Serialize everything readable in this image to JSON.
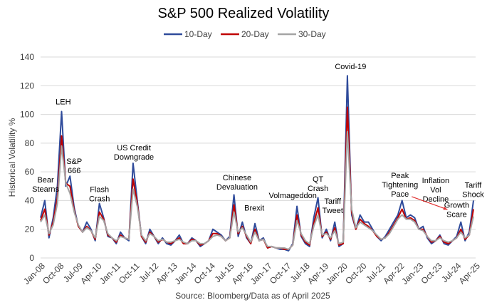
{
  "chart_data": {
    "type": "line",
    "title": "S&P 500 Realized Volatility",
    "xlabel": "",
    "ylabel": "Historical Volatility %",
    "source": "Source: Bloomberg/Data as of April 2025",
    "ylim": [
      0,
      140
    ],
    "yticks": [
      0,
      20,
      40,
      60,
      80,
      100,
      120,
      140
    ],
    "grid": true,
    "legend_position": "top-center",
    "x_start": "2008-01",
    "x_step_months": 2,
    "x_range_months": [
      0,
      207
    ],
    "xtick_labels": [
      "Jan-08",
      "Oct-08",
      "Jul-09",
      "Apr-10",
      "Jan-11",
      "Oct-11",
      "Jul-12",
      "Apr-13",
      "Jan-14",
      "Oct-14",
      "Jul-15",
      "Apr-16",
      "Jan-17",
      "Oct-17",
      "Jul-18",
      "Apr-19",
      "Jan-20",
      "Oct-20",
      "Jul-21",
      "Apr-22",
      "Jan-23",
      "Oct-23",
      "Jul-24",
      "Apr-25"
    ],
    "xtick_step_months": 9,
    "series": [
      {
        "name": "10-Day",
        "color": "#2F4B9B",
        "values": [
          28,
          40,
          14,
          28,
          50,
          102,
          50,
          57,
          35,
          22,
          18,
          25,
          20,
          12,
          38,
          28,
          15,
          14,
          10,
          18,
          14,
          12,
          66,
          40,
          15,
          10,
          20,
          15,
          10,
          14,
          10,
          9,
          12,
          16,
          10,
          10,
          14,
          12,
          8,
          10,
          12,
          20,
          18,
          16,
          12,
          15,
          44,
          15,
          25,
          14,
          10,
          24,
          12,
          14,
          7,
          8,
          7,
          6,
          6,
          5,
          10,
          36,
          15,
          10,
          8,
          28,
          42,
          14,
          20,
          12,
          25,
          8,
          10,
          127,
          30,
          20,
          30,
          25,
          25,
          20,
          15,
          12,
          15,
          20,
          25,
          30,
          40,
          28,
          30,
          28,
          20,
          22,
          14,
          10,
          12,
          16,
          10,
          9,
          12,
          15,
          25,
          12,
          18,
          40
        ]
      },
      {
        "name": "20-Day",
        "color": "#C00000",
        "values": [
          26,
          34,
          16,
          25,
          42,
          85,
          52,
          50,
          33,
          22,
          18,
          22,
          19,
          13,
          32,
          27,
          16,
          14,
          11,
          16,
          14,
          13,
          55,
          38,
          15,
          11,
          18,
          15,
          11,
          13,
          11,
          10,
          12,
          14,
          10,
          10,
          13,
          12,
          9,
          10,
          12,
          17,
          17,
          15,
          12,
          14,
          37,
          17,
          22,
          15,
          10,
          20,
          12,
          13,
          7,
          8,
          7,
          7,
          6,
          6,
          9,
          30,
          16,
          11,
          9,
          24,
          35,
          15,
          18,
          13,
          21,
          9,
          10,
          105,
          32,
          20,
          27,
          24,
          22,
          19,
          15,
          13,
          14,
          18,
          23,
          28,
          34,
          27,
          28,
          26,
          20,
          20,
          15,
          11,
          12,
          15,
          11,
          10,
          12,
          14,
          20,
          13,
          16,
          34
        ]
      },
      {
        "name": "30-Day",
        "color": "#A5A5A5",
        "values": [
          25,
          30,
          17,
          23,
          38,
          78,
          52,
          45,
          32,
          23,
          18,
          21,
          19,
          14,
          29,
          26,
          17,
          14,
          12,
          15,
          14,
          13,
          48,
          36,
          16,
          12,
          17,
          15,
          12,
          13,
          11,
          11,
          12,
          13,
          11,
          10,
          12,
          12,
          10,
          10,
          12,
          15,
          16,
          15,
          12,
          14,
          32,
          18,
          21,
          16,
          11,
          18,
          12,
          13,
          8,
          8,
          7,
          7,
          7,
          6,
          9,
          26,
          17,
          12,
          10,
          22,
          30,
          16,
          17,
          14,
          19,
          10,
          11,
          88,
          34,
          21,
          25,
          23,
          21,
          19,
          16,
          13,
          14,
          17,
          22,
          27,
          30,
          27,
          27,
          25,
          20,
          19,
          15,
          12,
          12,
          14,
          12,
          11,
          12,
          14,
          18,
          14,
          16,
          29
        ]
      }
    ],
    "annotations": [
      {
        "lines": [
          "Bear",
          "Stearns"
        ],
        "month": 2.4,
        "value": 54.6
      },
      {
        "lines": [
          "LEH"
        ],
        "month": 10.8,
        "value": 109
      },
      {
        "lines": [
          "S&P",
          "666"
        ],
        "month": 16,
        "value": 67.5
      },
      {
        "lines": [
          "Flash",
          "Crash"
        ],
        "month": 28,
        "value": 48
      },
      {
        "lines": [
          "US Credit",
          "Downgrade"
        ],
        "month": 44.4,
        "value": 77
      },
      {
        "lines": [
          "Chinese",
          "Devaluation"
        ],
        "month": 93.5,
        "value": 56
      },
      {
        "lines": [
          "Brexit"
        ],
        "month": 101.7,
        "value": 35
      },
      {
        "lines": [
          "Volmageddon"
        ],
        "month": 120,
        "value": 43.7
      },
      {
        "lines": [
          "QT",
          "Crash"
        ],
        "month": 132,
        "value": 55
      },
      {
        "lines": [
          "Tariff",
          "Tweet"
        ],
        "month": 139,
        "value": 39.7
      },
      {
        "lines": [
          "Covid-19"
        ],
        "month": 147.5,
        "value": 133.5
      },
      {
        "lines": [
          "Peak",
          "Tightening",
          "Pace"
        ],
        "month": 171,
        "value": 57.6
      },
      {
        "lines": [
          "Inflation",
          "Vol",
          "Decline"
        ],
        "month": 188,
        "value": 54
      },
      {
        "lines": [
          "Growth",
          "Scare"
        ],
        "month": 198,
        "value": 37
      },
      {
        "lines": [
          "Tariff",
          "Shock"
        ],
        "month": 205.8,
        "value": 51
      }
    ],
    "arrow": {
      "from": {
        "month": 176.6,
        "value": 42.7
      },
      "to": {
        "month": 193.6,
        "value": 33.7
      },
      "color": "#E03030"
    }
  }
}
